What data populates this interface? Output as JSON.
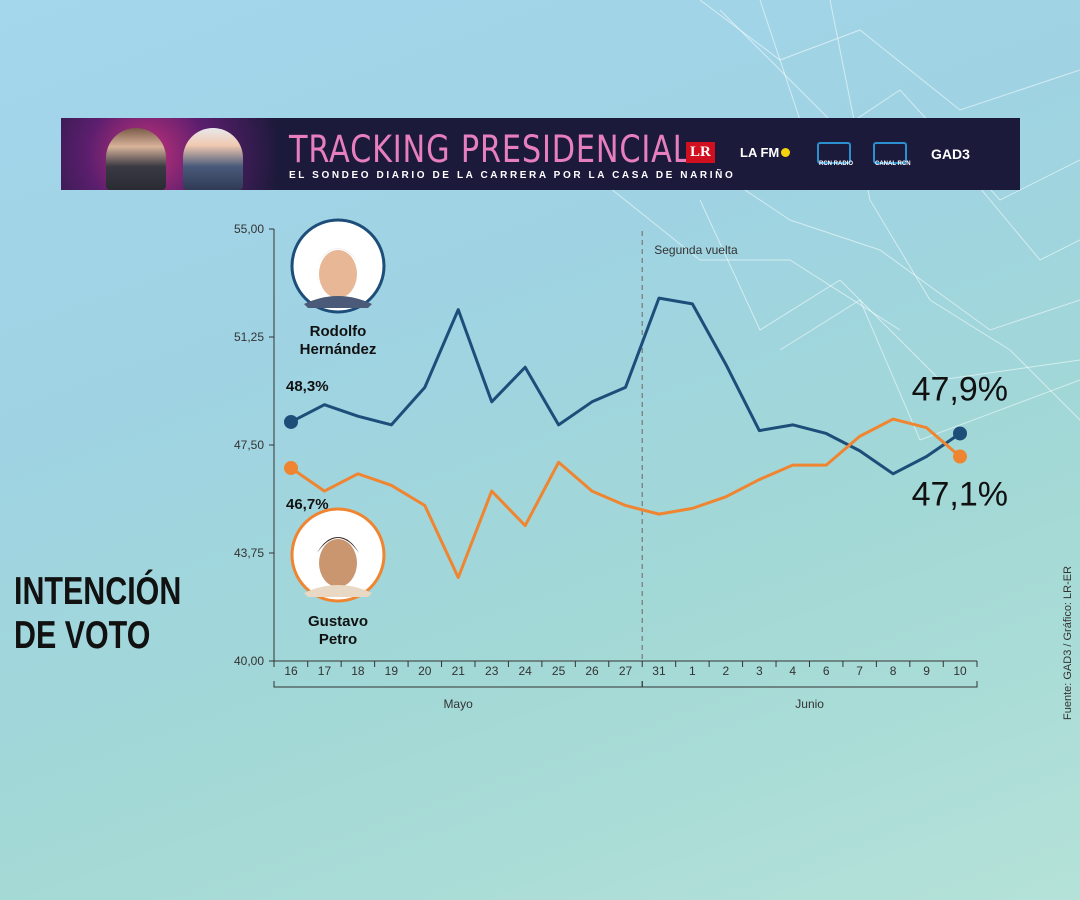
{
  "banner": {
    "title": "TRACKING PRESIDENCIAL",
    "subtitle": "EL SONDEO DIARIO DE LA CARRERA POR LA CASA DE NARIÑO",
    "logos": [
      "LR",
      "LA FM",
      "RCN RADIO",
      "CANAL RCN",
      "GAD3"
    ]
  },
  "headline": {
    "line1": "INTENCIÓN",
    "line2": "DE VOTO"
  },
  "source": "Fuente: GAD3 / Gráfico: LR-ER",
  "colors": {
    "hernandez": "#1d4e7a",
    "petro": "#ef8530",
    "divider": "#777777"
  },
  "chart_data": {
    "type": "line",
    "x": [
      "16",
      "17",
      "18",
      "19",
      "20",
      "21",
      "23",
      "24",
      "25",
      "26",
      "27",
      "31",
      "1",
      "2",
      "3",
      "4",
      "6",
      "7",
      "8",
      "9",
      "10"
    ],
    "months": [
      {
        "label": "Mayo",
        "from": "16",
        "to": "27"
      },
      {
        "label": "Junio",
        "from": "31",
        "to": "10"
      }
    ],
    "ylim": [
      40,
      55
    ],
    "yticks": [
      "55,00",
      "51,25",
      "47,50",
      "43,75",
      "40,00"
    ],
    "ytick_values": [
      55,
      51.25,
      47.5,
      43.75,
      40
    ],
    "series": [
      {
        "name": "Rodolfo Hernández",
        "name_line1": "Rodolfo",
        "name_line2": "Hernández",
        "start_label": "48,3%",
        "end_label": "47,9%",
        "values": [
          48.3,
          48.9,
          48.5,
          48.2,
          49.5,
          52.2,
          49.0,
          50.2,
          48.2,
          49.0,
          49.5,
          52.6,
          52.4,
          50.3,
          48.0,
          48.2,
          47.9,
          47.3,
          46.5,
          47.1,
          47.9
        ]
      },
      {
        "name": "Gustavo Petro",
        "name_line1": "Gustavo",
        "name_line2": "Petro",
        "start_label": "46,7%",
        "end_label": "47,1%",
        "values": [
          46.7,
          45.9,
          46.5,
          46.1,
          45.4,
          42.9,
          45.9,
          44.7,
          46.9,
          45.9,
          45.4,
          45.1,
          45.3,
          45.7,
          46.3,
          46.8,
          46.8,
          47.8,
          48.4,
          48.1,
          47.1
        ]
      }
    ],
    "annotation": "Segunda vuelta",
    "grid": false
  }
}
